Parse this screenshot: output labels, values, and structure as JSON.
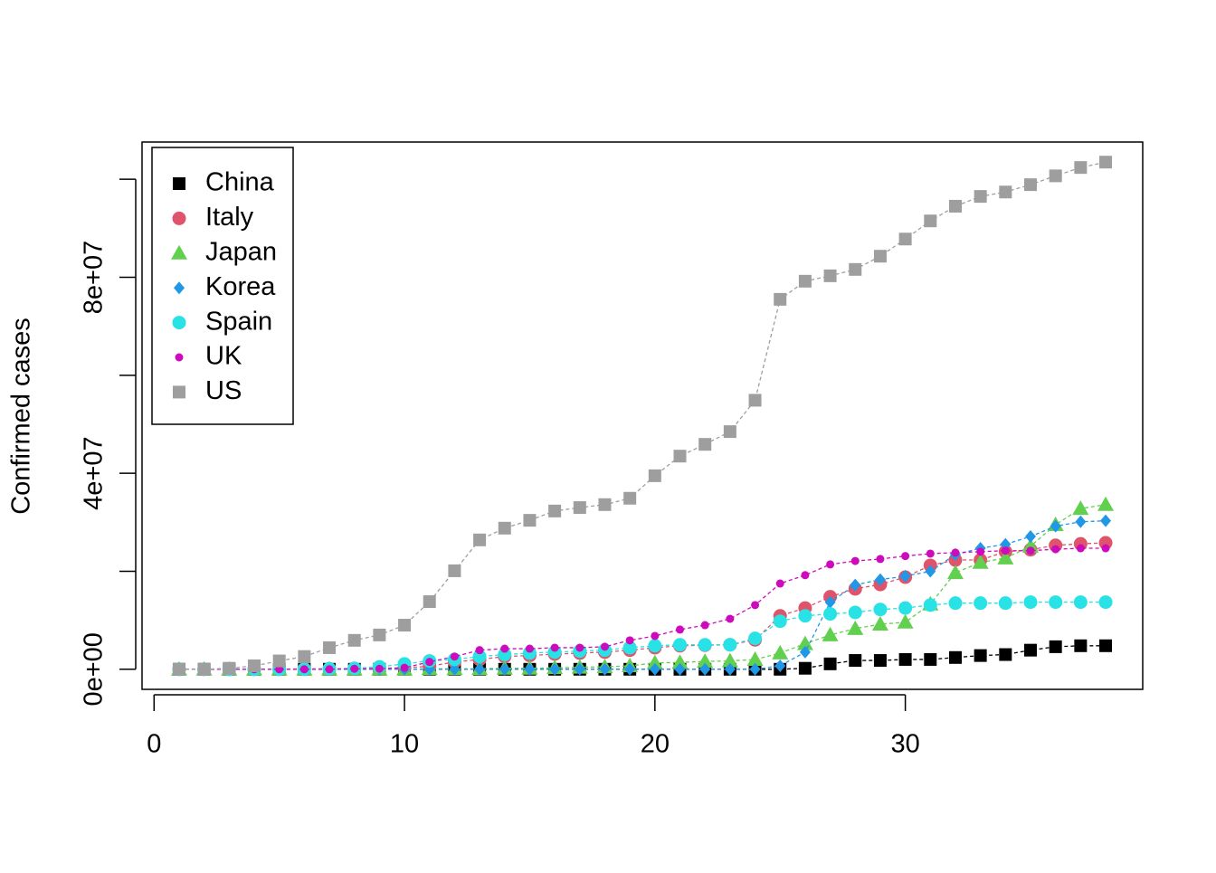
{
  "chart_data": {
    "type": "scatter",
    "y_label": "Confirmed cases",
    "x": [
      1,
      2,
      3,
      4,
      5,
      6,
      7,
      8,
      9,
      10,
      11,
      12,
      13,
      14,
      15,
      16,
      17,
      18,
      19,
      20,
      21,
      22,
      23,
      24,
      25,
      26,
      27,
      28,
      29,
      30,
      31,
      32,
      33,
      34,
      35,
      36,
      37,
      38
    ],
    "xlim": [
      -0.48,
      39.48
    ],
    "xticks": [
      0,
      10,
      20,
      30
    ],
    "ylim": [
      -4100000,
      107600000
    ],
    "yticks": [
      {
        "value": 0,
        "label": "0e+00"
      },
      {
        "value": 40000000,
        "label": "4e+07"
      },
      {
        "value": 80000000,
        "label": "8e+07"
      }
    ],
    "yminor_ticks": [
      20000000,
      60000000,
      100000000
    ],
    "legend": "top-left",
    "lines": "dashed",
    "series": [
      {
        "name": "China",
        "color": "#000000",
        "marker": "square",
        "values": [
          0,
          0,
          0,
          0,
          0,
          0,
          0,
          0,
          0,
          0,
          0,
          0,
          0,
          0,
          0,
          0,
          0,
          0,
          0,
          0,
          0,
          0,
          0,
          0,
          0,
          200000,
          1100000,
          1800000,
          1800000,
          2000000,
          2000000,
          2400000,
          2800000,
          3000000,
          3900000,
          4600000,
          4800000,
          4800000
        ]
      },
      {
        "name": "Italy",
        "color": "#DF536B",
        "marker": "circle",
        "values": [
          0,
          0,
          0,
          0,
          0,
          100000,
          100000,
          100000,
          200000,
          300000,
          600000,
          1500000,
          2000000,
          2600000,
          2800000,
          3100000,
          3300000,
          3500000,
          3900000,
          4400000,
          4800000,
          4900000,
          5000000,
          6000000,
          10900000,
          12500000,
          14800000,
          16400000,
          17300000,
          18800000,
          21200000,
          22300000,
          22300000,
          24000000,
          24400000,
          25300000,
          25600000,
          25800000
        ]
      },
      {
        "name": "Japan",
        "color": "#61D04F",
        "marker": "triangle",
        "values": [
          0,
          0,
          0,
          0,
          0,
          0,
          0,
          0,
          0,
          0,
          100000,
          100000,
          100000,
          200000,
          200000,
          300000,
          400000,
          500000,
          700000,
          1300000,
          1400000,
          1600000,
          1700000,
          2000000,
          3300000,
          5200000,
          7000000,
          8300000,
          9200000,
          9600000,
          13300000,
          19700000,
          21800000,
          22700000,
          25100000,
          29500000,
          32800000,
          33600000
        ]
      },
      {
        "name": "Korea",
        "color": "#2297E6",
        "marker": "diamond",
        "values": [
          0,
          0,
          0,
          0,
          0,
          0,
          0,
          0,
          0,
          0,
          0,
          0,
          0,
          0,
          0,
          0,
          0,
          0,
          0,
          0,
          0,
          0,
          0,
          0,
          700000,
          3500000,
          13700000,
          17200000,
          18300000,
          19000000,
          20000000,
          23400000,
          24700000,
          25500000,
          27100000,
          29200000,
          30100000,
          30300000
        ]
      },
      {
        "name": "Spain",
        "color": "#28E2E5",
        "marker": "circle",
        "values": [
          0,
          0,
          0,
          0,
          0,
          0,
          100000,
          200000,
          500000,
          1100000,
          1700000,
          2000000,
          2600000,
          3000000,
          3300000,
          3500000,
          3700000,
          3900000,
          4400000,
          4800000,
          5000000,
          5000000,
          5000000,
          6300000,
          9800000,
          10900000,
          11300000,
          11600000,
          12200000,
          12500000,
          13100000,
          13500000,
          13500000,
          13500000,
          13700000,
          13700000,
          13700000,
          13700000
        ]
      },
      {
        "name": "UK",
        "color": "#CD0BBC",
        "marker": "dot",
        "values": [
          0,
          0,
          0,
          0,
          0,
          0,
          0,
          100000,
          100000,
          300000,
          1500000,
          2600000,
          3900000,
          4200000,
          4200000,
          4400000,
          4400000,
          4600000,
          5900000,
          6800000,
          8100000,
          9000000,
          10300000,
          13100000,
          17500000,
          19200000,
          21400000,
          22100000,
          22500000,
          23100000,
          23600000,
          23800000,
          24000000,
          24200000,
          24200000,
          24500000,
          24700000,
          24700000
        ]
      },
      {
        "name": "US",
        "color": "#9E9E9E",
        "marker": "square",
        "values": [
          0,
          0,
          200000,
          700000,
          1700000,
          2600000,
          4400000,
          5900000,
          7000000,
          9000000,
          13800000,
          20100000,
          26400000,
          28800000,
          30400000,
          32300000,
          33000000,
          33600000,
          34900000,
          39500000,
          43500000,
          45900000,
          48500000,
          54900000,
          75500000,
          79200000,
          80300000,
          81600000,
          84300000,
          87800000,
          91500000,
          94500000,
          96500000,
          97400000,
          98900000,
          100700000,
          102400000,
          103500000
        ]
      }
    ]
  }
}
